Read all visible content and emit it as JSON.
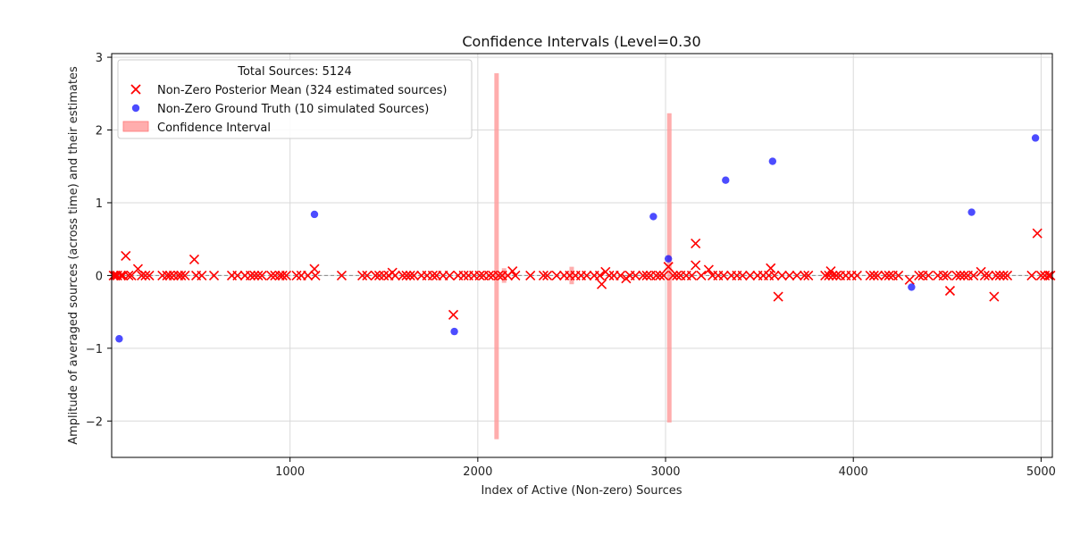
{
  "chart_data": {
    "type": "scatter",
    "title": "Confidence Intervals (Level=0.30",
    "xlabel": "Index of Active (Non-zero) Sources",
    "ylabel": "Amplitude of averaged sources (across time) and their estimates",
    "xlim": [
      50,
      5060
    ],
    "ylim": [
      -2.5,
      3.05
    ],
    "xticks": [
      1000,
      2000,
      3000,
      4000,
      5000
    ],
    "yticks": [
      -2,
      -1,
      0,
      1,
      2,
      3
    ],
    "grid": true,
    "legend_placement": "top-left",
    "legend": {
      "title": "Total Sources: 5124",
      "entries": [
        "Non-Zero Posterior Mean (324 estimated sources)",
        "Non-Zero Ground Truth (10 simulated Sources)",
        "Confidence Interval"
      ]
    },
    "colors": {
      "posterior": "#ff0000",
      "ground_truth": "#0000ff",
      "interval": "#ff9999",
      "zero_line": "#888888"
    },
    "confidence_intervals": [
      {
        "x": 2100,
        "lower": -2.25,
        "upper": 2.78
      },
      {
        "x": 2140,
        "lower": -0.1,
        "upper": 0.1
      },
      {
        "x": 2500,
        "lower": -0.12,
        "upper": 0.12
      },
      {
        "x": 3020,
        "lower": -2.02,
        "upper": 2.23
      }
    ],
    "ground_truth": [
      {
        "x": 90,
        "y": -0.87
      },
      {
        "x": 1130,
        "y": 0.84
      },
      {
        "x": 1875,
        "y": -0.77
      },
      {
        "x": 2935,
        "y": 0.81
      },
      {
        "x": 3015,
        "y": 0.23
      },
      {
        "x": 3320,
        "y": 1.31
      },
      {
        "x": 3570,
        "y": 1.57
      },
      {
        "x": 4310,
        "y": -0.16
      },
      {
        "x": 4630,
        "y": 0.87
      },
      {
        "x": 4970,
        "y": 1.89
      }
    ],
    "posterior_mean_nonzero": [
      {
        "x": 125,
        "y": 0.27
      },
      {
        "x": 190,
        "y": 0.09
      },
      {
        "x": 490,
        "y": 0.22
      },
      {
        "x": 1130,
        "y": 0.09
      },
      {
        "x": 1545,
        "y": 0.04
      },
      {
        "x": 1870,
        "y": -0.54
      },
      {
        "x": 2185,
        "y": 0.06
      },
      {
        "x": 2660,
        "y": -0.12
      },
      {
        "x": 2680,
        "y": 0.05
      },
      {
        "x": 2790,
        "y": -0.04
      },
      {
        "x": 3015,
        "y": 0.12
      },
      {
        "x": 3160,
        "y": 0.44
      },
      {
        "x": 3160,
        "y": 0.14
      },
      {
        "x": 3230,
        "y": 0.08
      },
      {
        "x": 3560,
        "y": 0.1
      },
      {
        "x": 3600,
        "y": -0.29
      },
      {
        "x": 3880,
        "y": 0.06
      },
      {
        "x": 4300,
        "y": -0.06
      },
      {
        "x": 4515,
        "y": -0.21
      },
      {
        "x": 4680,
        "y": 0.05
      },
      {
        "x": 4750,
        "y": -0.29
      },
      {
        "x": 4980,
        "y": 0.58
      }
    ],
    "posterior_mean_near_zero_x": [
      60,
      70,
      80,
      100,
      110,
      140,
      155,
      210,
      230,
      250,
      320,
      345,
      360,
      380,
      405,
      420,
      440,
      500,
      530,
      595,
      690,
      720,
      760,
      790,
      810,
      830,
      850,
      900,
      920,
      945,
      960,
      980,
      1035,
      1060,
      1095,
      1135,
      1275,
      1385,
      1410,
      1455,
      1475,
      1500,
      1525,
      1560,
      1600,
      1620,
      1640,
      1660,
      1700,
      1730,
      1760,
      1780,
      1815,
      1850,
      1895,
      1925,
      1950,
      1980,
      2010,
      2030,
      2060,
      2080,
      2110,
      2130,
      2160,
      2200,
      2280,
      2350,
      2370,
      2420,
      2460,
      2490,
      2520,
      2550,
      2580,
      2620,
      2650,
      2700,
      2725,
      2760,
      2810,
      2840,
      2880,
      2900,
      2920,
      2950,
      2970,
      2990,
      3040,
      3060,
      3080,
      3110,
      3140,
      3190,
      3250,
      3280,
      3310,
      3350,
      3380,
      3410,
      3450,
      3490,
      3520,
      3550,
      3580,
      3620,
      3660,
      3700,
      3740,
      3760,
      3850,
      3870,
      3890,
      3910,
      3930,
      3960,
      3990,
      4020,
      4090,
      4110,
      4130,
      4170,
      4190,
      4210,
      4240,
      4350,
      4370,
      4400,
      4450,
      4480,
      4500,
      4550,
      4570,
      4590,
      4610,
      4640,
      4700,
      4720,
      4760,
      4780,
      4800,
      4820,
      4950,
      5000,
      5020,
      5040,
      5050
    ]
  }
}
